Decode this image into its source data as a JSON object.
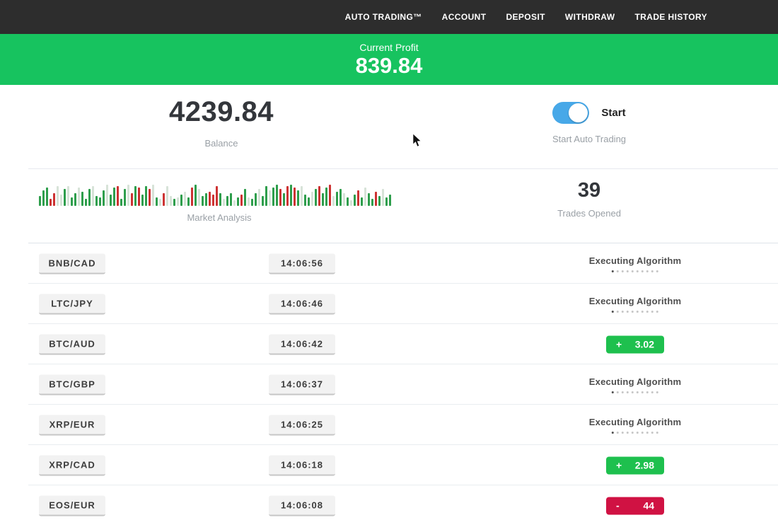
{
  "nav": {
    "items": [
      {
        "label": "AUTO TRADING™"
      },
      {
        "label": "ACCOUNT"
      },
      {
        "label": "DEPOSIT"
      },
      {
        "label": "WITHDRAW"
      },
      {
        "label": "TRADE HISTORY"
      }
    ]
  },
  "profit_banner": {
    "label": "Current Profit",
    "value": "839.84",
    "bg_color": "#17c35f"
  },
  "stats": {
    "balance": {
      "value": "4239.84",
      "label": "Balance"
    },
    "auto_trading": {
      "toggle_state": "on",
      "toggle_label": "Start",
      "label": "Start Auto Trading",
      "toggle_color": "#47a8e8"
    },
    "market_analysis": {
      "label": "Market Analysis"
    },
    "trades_opened": {
      "value": "39",
      "label": "Trades Opened"
    }
  },
  "chart_data": {
    "type": "bar",
    "title": "Market Analysis",
    "ylabel": "",
    "xlabel": "",
    "legend": false,
    "palette": {
      "g": "#2e9e4c",
      "r": "#cd3333",
      "n": "#d7e3d8"
    },
    "heights": [
      14,
      22,
      26,
      10,
      18,
      28,
      16,
      24,
      28,
      12,
      18,
      26,
      20,
      10,
      24,
      28,
      14,
      12,
      22,
      30,
      16,
      26,
      28,
      10,
      24,
      30,
      18,
      28,
      26,
      16,
      28,
      24,
      30,
      12,
      10,
      18,
      28,
      14,
      10,
      12,
      16,
      20,
      12,
      26,
      30,
      24,
      14,
      18,
      20,
      16,
      28,
      18,
      10,
      14,
      18,
      8,
      12,
      16,
      24,
      12,
      10,
      18,
      24,
      14,
      28,
      22,
      26,
      30,
      24,
      18,
      28,
      30,
      26,
      22,
      28,
      16,
      12,
      20,
      24,
      28,
      18,
      26,
      30,
      14,
      20,
      24,
      18,
      12,
      8,
      16,
      22,
      12,
      26,
      18,
      10,
      20,
      14,
      24,
      12,
      16
    ],
    "bar_colors": [
      "g",
      "g",
      "g",
      "r",
      "r",
      "n",
      "n",
      "g",
      "n",
      "g",
      "g",
      "n",
      "g",
      "g",
      "g",
      "n",
      "g",
      "g",
      "g",
      "n",
      "g",
      "g",
      "r",
      "g",
      "g",
      "n",
      "r",
      "g",
      "r",
      "g",
      "g",
      "r",
      "n",
      "g",
      "n",
      "r",
      "n",
      "n",
      "g",
      "n",
      "g",
      "n",
      "g",
      "r",
      "g",
      "n",
      "g",
      "g",
      "r",
      "r",
      "r",
      "g",
      "n",
      "g",
      "g",
      "n",
      "g",
      "r",
      "g",
      "n",
      "g",
      "g",
      "n",
      "g",
      "g",
      "n",
      "g",
      "g",
      "r",
      "g",
      "r",
      "g",
      "r",
      "g",
      "n",
      "g",
      "g",
      "n",
      "g",
      "r",
      "g",
      "g",
      "r",
      "n",
      "g",
      "g",
      "n",
      "g",
      "n",
      "g",
      "r",
      "g",
      "n",
      "g",
      "g",
      "r",
      "g",
      "n",
      "g",
      "g"
    ]
  },
  "trades": {
    "executing_label": "Executing Algorithm",
    "progress_dots": 10,
    "result_colors": {
      "win": "#1ec04e",
      "loss": "#d01243"
    },
    "rows": [
      {
        "pair": "BNB/CAD",
        "time": "14:06:56",
        "status": "executing"
      },
      {
        "pair": "LTC/JPY",
        "time": "14:06:46",
        "status": "executing"
      },
      {
        "pair": "BTC/AUD",
        "time": "14:06:42",
        "status": "win",
        "sign": "+",
        "amount": "3.02"
      },
      {
        "pair": "BTC/GBP",
        "time": "14:06:37",
        "status": "executing"
      },
      {
        "pair": "XRP/EUR",
        "time": "14:06:25",
        "status": "executing"
      },
      {
        "pair": "XRP/CAD",
        "time": "14:06:18",
        "status": "win",
        "sign": "+",
        "amount": "2.98"
      },
      {
        "pair": "EOS/EUR",
        "time": "14:06:08",
        "status": "loss",
        "sign": "-",
        "amount": "44"
      }
    ]
  }
}
